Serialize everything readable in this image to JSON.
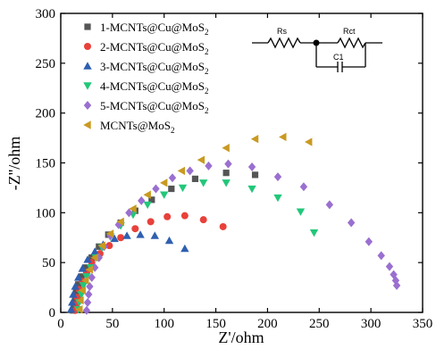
{
  "chart_data": {
    "type": "scatter",
    "title": "",
    "xlabel": "Z'/ohm",
    "ylabel": "-Z''/ohm",
    "xlim": [
      0,
      350
    ],
    "ylim": [
      0,
      300
    ],
    "xticks": [
      "0",
      "50",
      "100",
      "150",
      "200",
      "250",
      "300",
      "350"
    ],
    "yticks": [
      "0",
      "50",
      "100",
      "150",
      "200",
      "250",
      "300"
    ],
    "legend_position": "top-left",
    "series": [
      {
        "name": "1-MCNTs@Cu@MoS2",
        "color": "#555555",
        "marker": "square",
        "x": [
          12,
          13,
          14,
          15,
          17,
          20,
          24,
          30,
          37,
          46,
          58,
          72,
          88,
          107,
          130,
          160,
          188
        ],
        "y": [
          2,
          8,
          14,
          20,
          28,
          36,
          45,
          55,
          66,
          78,
          90,
          102,
          113,
          124,
          134,
          140,
          138
        ]
      },
      {
        "name": "2-MCNTs@Cu@MoS2",
        "color": "#e8413a",
        "marker": "circle",
        "x": [
          14,
          15,
          16,
          18,
          21,
          25,
          30,
          38,
          47,
          58,
          72,
          87,
          103,
          120,
          138,
          157
        ],
        "y": [
          2,
          8,
          15,
          23,
          31,
          40,
          50,
          59,
          67,
          75,
          84,
          91,
          96,
          97,
          93,
          86
        ]
      },
      {
        "name": "3-MCNTs@Cu@MoS2",
        "color": "#2f5fb0",
        "marker": "triangle-up",
        "x": [
          10,
          11,
          12,
          14,
          17,
          21,
          26,
          33,
          41,
          52,
          64,
          77,
          91,
          105,
          120
        ],
        "y": [
          3,
          10,
          18,
          26,
          35,
          44,
          53,
          61,
          68,
          74,
          77,
          78,
          77,
          72,
          64
        ]
      },
      {
        "name": "4-MCNTs@Cu@MoS2",
        "color": "#22c77a",
        "marker": "triangle-down",
        "x": [
          17,
          18,
          20,
          22,
          25,
          29,
          34,
          40,
          48,
          58,
          70,
          84,
          100,
          118,
          138,
          160,
          185,
          210,
          232,
          245
        ],
        "y": [
          3,
          10,
          18,
          27,
          36,
          45,
          55,
          65,
          76,
          87,
          98,
          108,
          118,
          125,
          130,
          130,
          124,
          115,
          101,
          80
        ]
      },
      {
        "name": "5-MCNTs@Cu@MoS2",
        "color": "#9a6fd0",
        "marker": "diamond",
        "x": [
          25,
          26,
          27,
          28,
          30,
          33,
          37,
          42,
          48,
          56,
          66,
          78,
          92,
          108,
          125,
          143,
          162,
          185,
          210,
          235,
          260,
          281,
          298,
          310,
          318,
          322,
          324,
          325
        ],
        "y": [
          2,
          10,
          18,
          26,
          35,
          45,
          55,
          66,
          77,
          88,
          100,
          112,
          124,
          135,
          142,
          147,
          149,
          146,
          136,
          126,
          108,
          90,
          71,
          57,
          46,
          38,
          32,
          27
        ]
      },
      {
        "name": "MCNTs@MoS2",
        "color": "#c99a22",
        "marker": "triangle-left",
        "x": [
          18,
          19,
          21,
          24,
          28,
          33,
          40,
          48,
          58,
          70,
          84,
          100,
          117,
          136,
          160,
          188,
          215,
          240
        ],
        "y": [
          3,
          12,
          22,
          32,
          43,
          55,
          67,
          79,
          91,
          104,
          118,
          130,
          142,
          153,
          165,
          174,
          176,
          171
        ]
      }
    ]
  },
  "legend": {
    "prefixes": [
      "1-MCNTs@Cu@MoS",
      "2-MCNTs@Cu@MoS",
      "3-MCNTs@Cu@MoS",
      "4-MCNTs@Cu@MoS",
      "5-MCNTs@Cu@MoS",
      "MCNTs@MoS"
    ],
    "subscript": "2"
  },
  "circuit": {
    "rs_label": "Rs",
    "rct_label": "Rct",
    "c1_label": "C1"
  }
}
